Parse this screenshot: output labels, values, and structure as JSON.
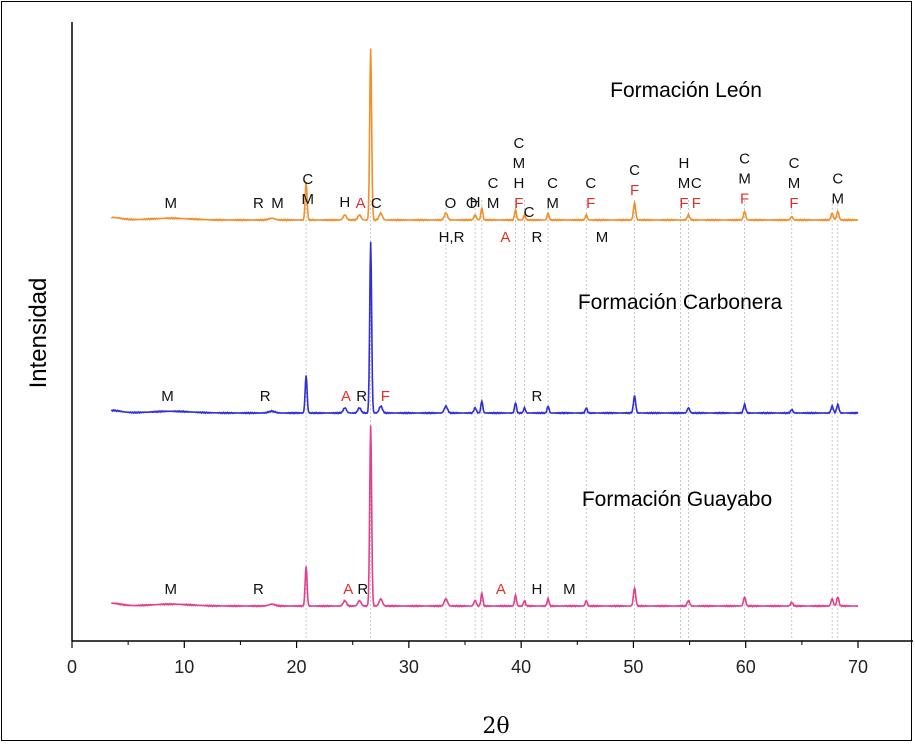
{
  "chart_data": {
    "type": "line",
    "xlabel": "2θ",
    "ylabel": "Intensidad",
    "xlim": [
      0,
      75
    ],
    "xticks": [
      0,
      10,
      20,
      30,
      40,
      50,
      60,
      70
    ],
    "x_range": [
      3.5,
      70
    ],
    "reference_lines": [
      20.85,
      26.6,
      33.3,
      35.9,
      36.5,
      39.5,
      40.3,
      42.4,
      45.8,
      50.1,
      54.2,
      54.9,
      59.9,
      64.1,
      67.7,
      68.2
    ],
    "peaks": [
      {
        "x": 8.8,
        "h": 0.01,
        "w": 2.5
      },
      {
        "x": 17.8,
        "h": 0.01,
        "w": 0.4
      },
      {
        "x": 20.85,
        "h": 0.22,
        "w": 0.12
      },
      {
        "x": 24.3,
        "h": 0.03,
        "w": 0.2
      },
      {
        "x": 25.6,
        "h": 0.03,
        "w": 0.2
      },
      {
        "x": 26.6,
        "h": 1.0,
        "w": 0.12
      },
      {
        "x": 27.5,
        "h": 0.04,
        "w": 0.2
      },
      {
        "x": 33.3,
        "h": 0.04,
        "w": 0.2
      },
      {
        "x": 35.9,
        "h": 0.03,
        "w": 0.15
      },
      {
        "x": 36.5,
        "h": 0.07,
        "w": 0.12
      },
      {
        "x": 39.5,
        "h": 0.06,
        "w": 0.12
      },
      {
        "x": 40.3,
        "h": 0.03,
        "w": 0.12
      },
      {
        "x": 42.4,
        "h": 0.04,
        "w": 0.12
      },
      {
        "x": 45.8,
        "h": 0.03,
        "w": 0.12
      },
      {
        "x": 50.1,
        "h": 0.1,
        "w": 0.14
      },
      {
        "x": 54.9,
        "h": 0.03,
        "w": 0.15
      },
      {
        "x": 59.9,
        "h": 0.05,
        "w": 0.14
      },
      {
        "x": 64.1,
        "h": 0.02,
        "w": 0.14
      },
      {
        "x": 67.7,
        "h": 0.04,
        "w": 0.14
      },
      {
        "x": 68.2,
        "h": 0.05,
        "w": 0.14
      }
    ],
    "series": [
      {
        "name": "Formación León",
        "color": "#f0902a",
        "offset": 3.0,
        "scale": 0.9,
        "annotations": [
          {
            "x": 8.8,
            "level": 1,
            "lines": [
              "M"
            ]
          },
          {
            "x": 16.6,
            "level": 1,
            "lines": [
              "R"
            ]
          },
          {
            "x": 18.3,
            "level": 1,
            "lines": [
              "M"
            ]
          },
          {
            "x": 21,
            "level": 2,
            "lines": [
              "C",
              "M"
            ]
          },
          {
            "x": 24.3,
            "level": 1,
            "lines": [
              "H"
            ]
          },
          {
            "x": 25.7,
            "level": 1,
            "lines": [
              "A"
            ],
            "red": [
              0
            ]
          },
          {
            "x": 27.1,
            "level": 3,
            "lines": [
              "C"
            ]
          },
          {
            "x": 33.7,
            "level": 1,
            "lines": [
              "O"
            ]
          },
          {
            "x": 33.8,
            "level": -1,
            "lines": [
              "H,R"
            ]
          },
          {
            "x": 35.6,
            "level": 1,
            "lines": [
              "O"
            ]
          },
          {
            "x": 35.9,
            "level": 2,
            "lines": [
              "H"
            ]
          },
          {
            "x": 37.5,
            "level": 1,
            "lines": [
              "C",
              "M"
            ]
          },
          {
            "x": 38.6,
            "level": -1,
            "lines": [
              "A"
            ],
            "red": [
              0
            ]
          },
          {
            "x": 39.8,
            "level": 1,
            "lines": [
              "C",
              "M",
              "H",
              "F"
            ],
            "red": [
              3
            ]
          },
          {
            "x": 40.7,
            "level": 0,
            "lines": [
              "C"
            ]
          },
          {
            "x": 41.4,
            "level": -1,
            "lines": [
              "R"
            ]
          },
          {
            "x": 42.8,
            "level": 1,
            "lines": [
              "C",
              "M"
            ]
          },
          {
            "x": 46.2,
            "level": 1,
            "lines": [
              "C",
              "F"
            ],
            "red": [
              1
            ]
          },
          {
            "x": 47.2,
            "level": -1,
            "lines": [
              "M"
            ]
          },
          {
            "x": 50.1,
            "level": 1,
            "lines": [
              "C",
              "F"
            ],
            "red": [
              1
            ]
          },
          {
            "x": 54.5,
            "level": 1,
            "lines": [
              "H",
              "M",
              "F"
            ],
            "red": [
              2
            ]
          },
          {
            "x": 55.6,
            "level": 1,
            "lines": [
              "C",
              "F"
            ],
            "red": [
              1
            ]
          },
          {
            "x": 59.9,
            "level": 1,
            "lines": [
              "C",
              "M",
              "F"
            ],
            "red": [
              2
            ]
          },
          {
            "x": 64.3,
            "level": 1,
            "lines": [
              "C",
              "M",
              "F"
            ],
            "red": [
              2
            ]
          },
          {
            "x": 68.2,
            "level": 1,
            "lines": [
              "C",
              "M"
            ]
          }
        ]
      },
      {
        "name": "Formación Carbonera",
        "color": "#2f2fd6",
        "offset": 1.55,
        "scale": 0.9,
        "annotations": [
          {
            "x": 8.5,
            "level": 1,
            "lines": [
              "M"
            ]
          },
          {
            "x": 17.2,
            "level": 1,
            "lines": [
              "R"
            ]
          },
          {
            "x": 24.4,
            "level": 1,
            "lines": [
              "A"
            ],
            "red": [
              0
            ]
          },
          {
            "x": 25.8,
            "level": 1,
            "lines": [
              "R"
            ]
          },
          {
            "x": 27.9,
            "level": 1,
            "lines": [
              "F"
            ],
            "red": [
              0
            ]
          },
          {
            "x": 41.4,
            "level": 1,
            "lines": [
              "R"
            ]
          }
        ]
      },
      {
        "name": "Formación Guayabo",
        "color": "#e0408c",
        "offset": 0.0,
        "scale": 0.95,
        "annotations": [
          {
            "x": 8.8,
            "level": 1,
            "lines": [
              "M"
            ]
          },
          {
            "x": 16.6,
            "level": 1,
            "lines": [
              "R"
            ]
          },
          {
            "x": 24.6,
            "level": 1,
            "lines": [
              "A"
            ],
            "red": [
              0
            ]
          },
          {
            "x": 25.9,
            "level": 1,
            "lines": [
              "R"
            ]
          },
          {
            "x": 38.2,
            "level": 1,
            "lines": [
              "A"
            ],
            "red": [
              0
            ]
          },
          {
            "x": 41.4,
            "level": 1,
            "lines": [
              "H"
            ]
          },
          {
            "x": 44.3,
            "level": 1,
            "lines": [
              "M"
            ]
          }
        ]
      }
    ]
  }
}
